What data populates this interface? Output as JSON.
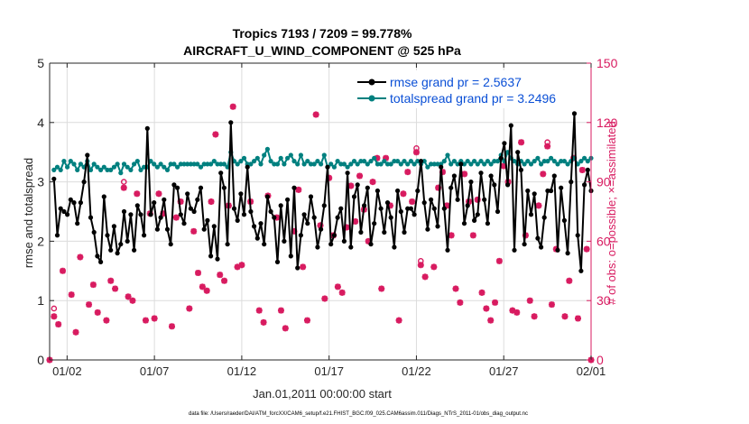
{
  "chart_data": {
    "type": "line",
    "title": "Tropics 7193 / 7209 = 99.778%",
    "subtitle": "AIRCRAFT_U_WIND_COMPONENT @ 525 hPa",
    "xlabel": "Jan.01,2011 00:00:00 start",
    "ylabel_left": "rmse and totalspread",
    "ylabel_right": "# of obs: o=possible; ×=assimilated",
    "footnote": "data file: /Users/raeder/DAI/ATM_forcXX/CAM6_setup/f.e21.FHIST_BGC.f09_025.CAM6assim.011/Diags_NTrS_2011-01/obs_diag_output.nc",
    "xlim": [
      0.5,
      31.5
    ],
    "ylim_left": [
      0,
      5
    ],
    "ylim_right": [
      0,
      150
    ],
    "x_ticks": [
      1.5,
      6.5,
      11.5,
      16.5,
      21.5,
      26.5,
      31.5
    ],
    "x_tick_labels": [
      "01/02",
      "01/07",
      "01/12",
      "01/17",
      "01/22",
      "01/27",
      "02/01"
    ],
    "y_ticks_left": [
      0,
      1,
      2,
      3,
      4,
      5
    ],
    "y_ticks_right": [
      0,
      30,
      60,
      90,
      120,
      150
    ],
    "grid": true,
    "legend_position": "top-right",
    "colors": {
      "rmse": "#000000",
      "spread": "#00807f",
      "obs": "#d81b60",
      "right_axis": "#d81b60",
      "axis": "#262626",
      "legend_text": "#0a4fd6"
    },
    "series": [
      {
        "name": "rmse grand pr = 2.5637",
        "axis": "left",
        "values": [
          3.05,
          2.1,
          2.55,
          2.5,
          2.45,
          2.7,
          2.65,
          2.3,
          2.65,
          3.0,
          3.45,
          2.4,
          2.15,
          1.75,
          1.65,
          2.75,
          2.1,
          1.85,
          2.25,
          1.8,
          1.95,
          2.5,
          2.0,
          2.45,
          1.85,
          2.6,
          2.45,
          2.1,
          3.9,
          2.45,
          2.65,
          2.2,
          2.4,
          2.7,
          2.2,
          1.95,
          2.95,
          2.9,
          2.45,
          2.3,
          2.8,
          2.55,
          2.5,
          2.7,
          2.9,
          2.2,
          2.35,
          1.75,
          2.25,
          1.7,
          3.15,
          2.9,
          1.95,
          4.0,
          2.55,
          2.35,
          2.8,
          2.45,
          3.25,
          2.5,
          2.25,
          2.05,
          2.3,
          1.95,
          2.75,
          2.5,
          2.4,
          1.65,
          2.6,
          2.0,
          2.7,
          1.75,
          2.9,
          1.55,
          2.1,
          2.45,
          2.3,
          2.75,
          2.4,
          1.9,
          2.2,
          2.6,
          3.25,
          1.95,
          2.1,
          2.4,
          2.55,
          2.0,
          3.15,
          1.9,
          2.75,
          2.95,
          2.15,
          2.6,
          2.9,
          1.95,
          2.3,
          2.85,
          2.55,
          2.15,
          2.65,
          2.4,
          1.9,
          2.85,
          2.5,
          2.15,
          2.55,
          2.55,
          2.45,
          2.85,
          3.35,
          2.65,
          2.2,
          2.7,
          2.55,
          2.25,
          3.25,
          2.55,
          1.85,
          2.9,
          3.1,
          2.7,
          3.3,
          2.3,
          2.6,
          3.0,
          2.35,
          2.45,
          3.15,
          2.7,
          2.3,
          3.1,
          2.95,
          2.5,
          3.4,
          3.65,
          2.95,
          3.95,
          1.85,
          3.5,
          3.2,
          1.95,
          2.85,
          2.45,
          2.8,
          2.05,
          1.9,
          2.4,
          2.85,
          2.85,
          3.1,
          1.85,
          2.9,
          2.35,
          1.8,
          3.0,
          4.15,
          2.1,
          1.5,
          2.95,
          3.2,
          2.85
        ]
      },
      {
        "name": "totalspread grand pr = 3.2496",
        "axis": "left",
        "values": [
          3.2,
          3.25,
          3.2,
          3.35,
          3.25,
          3.35,
          3.3,
          3.2,
          3.3,
          3.25,
          3.35,
          3.2,
          3.3,
          3.25,
          3.2,
          3.25,
          3.2,
          3.2,
          3.25,
          3.3,
          3.15,
          3.3,
          3.25,
          3.2,
          3.3,
          3.35,
          3.2,
          3.25,
          3.25,
          3.35,
          3.3,
          3.25,
          3.3,
          3.25,
          3.2,
          3.3,
          3.3,
          3.25,
          3.3,
          3.3,
          3.3,
          3.3,
          3.3,
          3.3,
          3.25,
          3.3,
          3.3,
          3.3,
          3.35,
          3.3,
          3.3,
          3.3,
          3.25,
          3.5,
          3.35,
          3.3,
          3.35,
          3.4,
          3.3,
          3.3,
          3.35,
          3.4,
          3.3,
          3.45,
          3.55,
          3.35,
          3.3,
          3.3,
          3.4,
          3.3,
          3.4,
          3.45,
          3.35,
          3.3,
          3.45,
          3.3,
          3.35,
          3.3,
          3.3,
          3.35,
          3.3,
          3.45,
          3.25,
          3.3,
          3.25,
          3.35,
          3.3,
          3.3,
          3.25,
          3.3,
          3.35,
          3.3,
          3.35,
          3.35,
          3.3,
          3.35,
          3.4,
          3.3,
          3.3,
          3.35,
          3.3,
          3.3,
          3.35,
          3.35,
          3.3,
          3.35,
          3.3,
          3.35,
          3.3,
          3.35,
          3.3,
          3.35,
          3.25,
          3.3,
          3.3,
          3.3,
          3.3,
          3.35,
          3.45,
          3.3,
          3.35,
          3.3,
          3.35,
          3.3,
          3.35,
          3.3,
          3.35,
          3.3,
          3.35,
          3.3,
          3.35,
          3.3,
          3.35,
          3.35,
          3.45,
          3.35,
          3.5,
          3.4,
          3.35,
          3.3,
          3.35,
          3.3,
          3.35,
          3.3,
          3.35,
          3.4,
          3.3,
          3.35,
          3.35,
          3.4,
          3.35,
          3.3,
          3.35,
          3.35,
          3.3,
          3.35,
          3.4,
          3.3,
          3.35,
          3.4,
          3.35,
          3.4
        ]
      }
    ],
    "obs_possible": [
      {
        "x": 0.75,
        "y": 26
      },
      {
        "x": 4.75,
        "y": 90
      },
      {
        "x": 21.5,
        "y": 107
      },
      {
        "x": 21.75,
        "y": 50
      },
      {
        "x": 29.0,
        "y": 110
      }
    ],
    "obs_assimilated": [
      {
        "x": 0.5,
        "y": 0
      },
      {
        "x": 0.75,
        "y": 22
      },
      {
        "x": 1.0,
        "y": 18
      },
      {
        "x": 1.25,
        "y": 45
      },
      {
        "x": 1.75,
        "y": 33
      },
      {
        "x": 2.0,
        "y": 14
      },
      {
        "x": 2.25,
        "y": 52
      },
      {
        "x": 2.75,
        "y": 28
      },
      {
        "x": 3.0,
        "y": 38
      },
      {
        "x": 3.25,
        "y": 24
      },
      {
        "x": 3.75,
        "y": 20
      },
      {
        "x": 4.0,
        "y": 40
      },
      {
        "x": 4.25,
        "y": 36
      },
      {
        "x": 4.75,
        "y": 87
      },
      {
        "x": 5.0,
        "y": 32
      },
      {
        "x": 5.25,
        "y": 30
      },
      {
        "x": 5.5,
        "y": 84
      },
      {
        "x": 6.0,
        "y": 20
      },
      {
        "x": 6.25,
        "y": 74
      },
      {
        "x": 6.5,
        "y": 21
      },
      {
        "x": 6.75,
        "y": 84
      },
      {
        "x": 7.0,
        "y": 74
      },
      {
        "x": 7.5,
        "y": 17
      },
      {
        "x": 7.75,
        "y": 72
      },
      {
        "x": 8.0,
        "y": 80
      },
      {
        "x": 8.5,
        "y": 26
      },
      {
        "x": 8.75,
        "y": 65
      },
      {
        "x": 9.0,
        "y": 44
      },
      {
        "x": 9.25,
        "y": 37
      },
      {
        "x": 9.5,
        "y": 35
      },
      {
        "x": 9.75,
        "y": 80
      },
      {
        "x": 10.0,
        "y": 114
      },
      {
        "x": 10.25,
        "y": 43
      },
      {
        "x": 10.5,
        "y": 40
      },
      {
        "x": 10.75,
        "y": 78
      },
      {
        "x": 11.0,
        "y": 128
      },
      {
        "x": 11.25,
        "y": 47
      },
      {
        "x": 11.5,
        "y": 48
      },
      {
        "x": 12.0,
        "y": 80
      },
      {
        "x": 12.5,
        "y": 25
      },
      {
        "x": 12.75,
        "y": 19
      },
      {
        "x": 13.0,
        "y": 83
      },
      {
        "x": 13.5,
        "y": 72
      },
      {
        "x": 13.75,
        "y": 25
      },
      {
        "x": 14.0,
        "y": 16
      },
      {
        "x": 14.5,
        "y": 65
      },
      {
        "x": 14.75,
        "y": 86
      },
      {
        "x": 15.0,
        "y": 47
      },
      {
        "x": 15.25,
        "y": 20
      },
      {
        "x": 15.75,
        "y": 124
      },
      {
        "x": 16.0,
        "y": 68
      },
      {
        "x": 16.25,
        "y": 31
      },
      {
        "x": 16.5,
        "y": 92
      },
      {
        "x": 16.75,
        "y": 63
      },
      {
        "x": 17.0,
        "y": 37
      },
      {
        "x": 17.25,
        "y": 34
      },
      {
        "x": 17.5,
        "y": 67
      },
      {
        "x": 17.75,
        "y": 88
      },
      {
        "x": 18.0,
        "y": 70
      },
      {
        "x": 18.25,
        "y": 93
      },
      {
        "x": 18.5,
        "y": 76
      },
      {
        "x": 18.75,
        "y": 60
      },
      {
        "x": 19.0,
        "y": 90
      },
      {
        "x": 19.25,
        "y": 102
      },
      {
        "x": 19.5,
        "y": 36
      },
      {
        "x": 19.75,
        "y": 102
      },
      {
        "x": 20.0,
        "y": 78
      },
      {
        "x": 20.5,
        "y": 20
      },
      {
        "x": 20.75,
        "y": 84
      },
      {
        "x": 21.0,
        "y": 95
      },
      {
        "x": 21.25,
        "y": 80
      },
      {
        "x": 21.5,
        "y": 105
      },
      {
        "x": 21.75,
        "y": 48
      },
      {
        "x": 22.0,
        "y": 42
      },
      {
        "x": 22.5,
        "y": 47
      },
      {
        "x": 22.75,
        "y": 87
      },
      {
        "x": 23.0,
        "y": 95
      },
      {
        "x": 23.25,
        "y": 78
      },
      {
        "x": 23.5,
        "y": 63
      },
      {
        "x": 23.75,
        "y": 36
      },
      {
        "x": 24.0,
        "y": 29
      },
      {
        "x": 24.25,
        "y": 94
      },
      {
        "x": 24.5,
        "y": 80
      },
      {
        "x": 24.75,
        "y": 63
      },
      {
        "x": 25.0,
        "y": 81
      },
      {
        "x": 25.25,
        "y": 34
      },
      {
        "x": 25.5,
        "y": 26
      },
      {
        "x": 25.75,
        "y": 20
      },
      {
        "x": 26.0,
        "y": 29
      },
      {
        "x": 26.25,
        "y": 50
      },
      {
        "x": 26.5,
        "y": 98
      },
      {
        "x": 26.75,
        "y": 90
      },
      {
        "x": 27.0,
        "y": 25
      },
      {
        "x": 27.25,
        "y": 24
      },
      {
        "x": 27.5,
        "y": 110
      },
      {
        "x": 27.75,
        "y": 63
      },
      {
        "x": 28.0,
        "y": 30
      },
      {
        "x": 28.25,
        "y": 22
      },
      {
        "x": 28.5,
        "y": 78
      },
      {
        "x": 28.75,
        "y": 94
      },
      {
        "x": 29.0,
        "y": 108
      },
      {
        "x": 29.25,
        "y": 28
      },
      {
        "x": 29.5,
        "y": 56
      },
      {
        "x": 30.0,
        "y": 22
      },
      {
        "x": 30.25,
        "y": 40
      },
      {
        "x": 30.5,
        "y": 102
      },
      {
        "x": 30.75,
        "y": 21
      },
      {
        "x": 31.0,
        "y": 96
      },
      {
        "x": 31.25,
        "y": 56
      },
      {
        "x": 31.5,
        "y": 0
      }
    ]
  }
}
